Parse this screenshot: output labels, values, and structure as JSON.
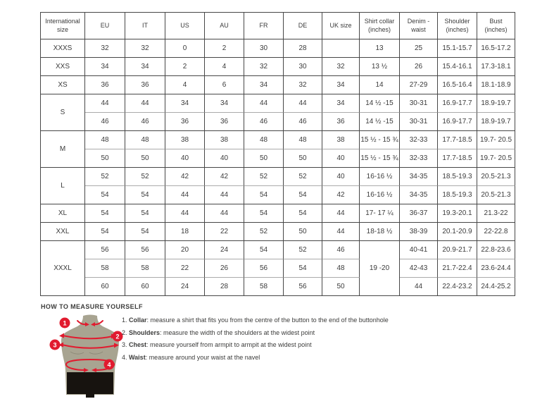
{
  "size_table": {
    "headers": [
      {
        "key": "intl",
        "label": "International size"
      },
      {
        "key": "eu",
        "label": "EU"
      },
      {
        "key": "it",
        "label": "IT"
      },
      {
        "key": "us",
        "label": "US"
      },
      {
        "key": "au",
        "label": "AU"
      },
      {
        "key": "fr",
        "label": "FR"
      },
      {
        "key": "de",
        "label": "DE"
      },
      {
        "key": "uk",
        "label": "UK size"
      },
      {
        "key": "collar",
        "label": "Shirt collar (inches)"
      },
      {
        "key": "denim",
        "label": "Denim - waist"
      },
      {
        "key": "shoulder",
        "label": "Shoulder (inches)"
      },
      {
        "key": "bust",
        "label": "Bust (inches)"
      }
    ],
    "groups": [
      {
        "size": "XXXS",
        "rows": [
          {
            "eu": "32",
            "it": "32",
            "us": "0",
            "au": "2",
            "fr": "30",
            "de": "28",
            "uk": "",
            "collar": "13",
            "denim": "25",
            "shoulder": "15.1-15.7",
            "bust": "16.5-17.2"
          }
        ]
      },
      {
        "size": "XXS",
        "rows": [
          {
            "eu": "34",
            "it": "34",
            "us": "2",
            "au": "4",
            "fr": "32",
            "de": "30",
            "uk": "32",
            "collar": "13 ½",
            "denim": "26",
            "shoulder": "15.4-16.1",
            "bust": "17.3-18.1"
          }
        ]
      },
      {
        "size": "XS",
        "rows": [
          {
            "eu": "36",
            "it": "36",
            "us": "4",
            "au": "6",
            "fr": "34",
            "de": "32",
            "uk": "34",
            "collar": "14",
            "denim": "27-29",
            "shoulder": "16.5-16.4",
            "bust": "18.1-18.9"
          }
        ]
      },
      {
        "size": "S",
        "rows": [
          {
            "eu": "44",
            "it": "44",
            "us": "34",
            "au": "34",
            "fr": "44",
            "de": "44",
            "uk": "34",
            "collar": "14 ½ -15",
            "denim": "30-31",
            "shoulder": "16.9-17.7",
            "bust": "18.9-19.7"
          },
          {
            "eu": "46",
            "it": "46",
            "us": "36",
            "au": "36",
            "fr": "46",
            "de": "46",
            "uk": "36",
            "collar": "14 ½ -15",
            "denim": "30-31",
            "shoulder": "16.9-17.7",
            "bust": "18.9-19.7"
          }
        ]
      },
      {
        "size": "M",
        "rows": [
          {
            "eu": "48",
            "it": "48",
            "us": "38",
            "au": "38",
            "fr": "48",
            "de": "48",
            "uk": "38",
            "collar": "15 ½ - 15 ¾",
            "denim": "32-33",
            "shoulder": "17.7-18.5",
            "bust": "19.7- 20.5"
          },
          {
            "eu": "50",
            "it": "50",
            "us": "40",
            "au": "40",
            "fr": "50",
            "de": "50",
            "uk": "40",
            "collar": "15 ½ - 15 ¾",
            "denim": "32-33",
            "shoulder": "17.7-18.5",
            "bust": "19.7- 20.5"
          }
        ]
      },
      {
        "size": "L",
        "rows": [
          {
            "eu": "52",
            "it": "52",
            "us": "42",
            "au": "42",
            "fr": "52",
            "de": "52",
            "uk": "40",
            "collar": "16-16 ½",
            "denim": "34-35",
            "shoulder": "18.5-19.3",
            "bust": "20.5-21.3"
          },
          {
            "eu": "54",
            "it": "54",
            "us": "44",
            "au": "44",
            "fr": "54",
            "de": "54",
            "uk": "42",
            "collar": "16-16 ½",
            "denim": "34-35",
            "shoulder": "18.5-19.3",
            "bust": "20.5-21.3"
          }
        ]
      },
      {
        "size": "XL",
        "rows": [
          {
            "eu": "54",
            "it": "54",
            "us": "44",
            "au": "44",
            "fr": "54",
            "de": "54",
            "uk": "44",
            "collar": "17- 17 ¼",
            "denim": "36-37",
            "shoulder": "19.3-20.1",
            "bust": "21.3-22"
          }
        ]
      },
      {
        "size": "XXL",
        "rows": [
          {
            "eu": "54",
            "it": "54",
            "us": "18",
            "au": "22",
            "fr": "52",
            "de": "50",
            "uk": "44",
            "collar": "18-18 ½",
            "denim": "38-39",
            "shoulder": "20.1-20.9",
            "bust": "22-22.8"
          }
        ]
      },
      {
        "size": "XXXL",
        "collar_merged": "19 -20",
        "rows": [
          {
            "eu": "56",
            "it": "56",
            "us": "20",
            "au": "24",
            "fr": "54",
            "de": "52",
            "uk": "46",
            "denim": "40-41",
            "shoulder": "20.9-21.7",
            "bust": "22.8-23.6"
          },
          {
            "eu": "58",
            "it": "58",
            "us": "22",
            "au": "26",
            "fr": "56",
            "de": "54",
            "uk": "48",
            "denim": "42-43",
            "shoulder": "21.7-22.4",
            "bust": "23.6-24.4"
          },
          {
            "eu": "60",
            "it": "60",
            "us": "24",
            "au": "28",
            "fr": "58",
            "de": "56",
            "uk": "50",
            "denim": "44",
            "shoulder": "22.4-23.2",
            "bust": "24.4-25.2"
          }
        ]
      }
    ]
  },
  "measure_section": {
    "title": "HOW TO MEASURE YOURSELF",
    "steps": [
      {
        "num": "1.",
        "label": "Collar",
        "text": "measure a shirt that fits you from the centre of the button to the end of the buttonhole"
      },
      {
        "num": "2.",
        "label": "Shoulders",
        "text": "measure the width of the shoulders at the widest point"
      },
      {
        "num": "3.",
        "label": "Chest",
        "text": "measure yourself from armpit to armpit at the widest point"
      },
      {
        "num": "4.",
        "label": "Waist",
        "text": "measure around your waist at the navel"
      }
    ],
    "badges": [
      "1",
      "2",
      "3",
      "4"
    ],
    "colors": {
      "accent_red": "#e11b2f",
      "torso": "#a8a491",
      "shorts": "#17130f",
      "border_dark": "#474747",
      "border_light": "#ababab"
    }
  }
}
